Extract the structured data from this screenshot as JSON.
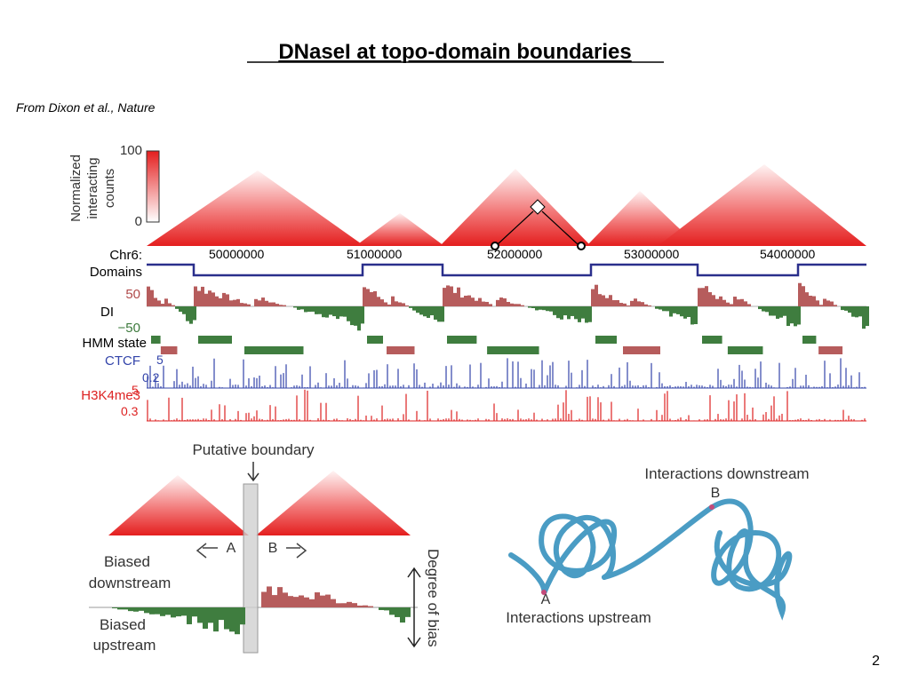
{
  "title": "DNaseI at topo-domain boundaries",
  "citation": "From Dixon et al., Nature",
  "figure_top": {
    "legend_title": [
      "Normalized",
      "interacting",
      "counts"
    ],
    "legend_max": "100",
    "legend_min": "0",
    "chrom_label": "Chr6:",
    "positions": [
      "50000000",
      "51000000",
      "52000000",
      "53000000",
      "54000000"
    ],
    "tracks": {
      "domains": "Domains",
      "di": "DI",
      "di_max": "50",
      "di_min": "−50",
      "hmm": "HMM state",
      "ctcf": "CTCF",
      "ctcf_max": "5",
      "ctcf_min": "0.2",
      "h3k4me3": "H3K4me3",
      "h3_max": "5",
      "h3_min": "0.3"
    }
  },
  "figure_bottom_left": {
    "boundary_label": "Putative boundary",
    "a": "A",
    "b": "B",
    "biased_downstream": [
      "Biased",
      "downstream"
    ],
    "biased_upstream": [
      "Biased",
      "upstream"
    ],
    "degree": "Degree of bias"
  },
  "figure_bottom_right": {
    "downstream": "Interactions downstream",
    "b": "B",
    "a": "A",
    "upstream": "Interactions upstream"
  },
  "page_number": "2"
}
